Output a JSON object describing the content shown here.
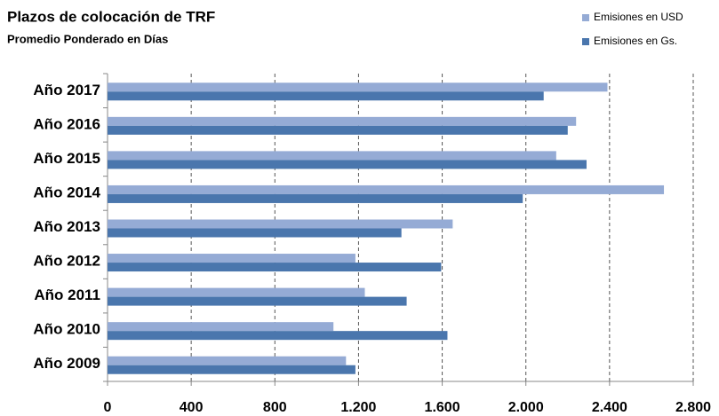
{
  "chart_data": {
    "type": "bar",
    "orientation": "horizontal",
    "title": "Plazos de colocación de TRF",
    "subtitle": "Promedio Ponderado en Días",
    "categories": [
      "Año 2017",
      "Año 2016",
      "Año 2015",
      "Año 2014",
      "Año 2013",
      "Año 2012",
      "Año 2011",
      "Año 2010",
      "Año 2009"
    ],
    "series": [
      {
        "name": "Emisiones en USD",
        "color": "#95abd5",
        "values": [
          2390,
          2240,
          2145,
          2660,
          1650,
          1185,
          1230,
          1080,
          1140
        ]
      },
      {
        "name": "Emisiones en Gs.",
        "color": "#4a76ad",
        "values": [
          2085,
          2200,
          2290,
          1985,
          1405,
          1595,
          1430,
          1625,
          1185
        ]
      }
    ],
    "xlim": [
      0,
      2800
    ],
    "xticks": [
      0,
      400,
      800,
      {
        "value": 1200,
        "label": "1.200"
      },
      {
        "value": 1600,
        "label": "1.600"
      },
      {
        "value": 2000,
        "label": "2.000"
      },
      {
        "value": 2400,
        "label": "2.400"
      },
      {
        "value": 2800,
        "label": "2.800"
      }
    ],
    "grid": true,
    "legend": "top-right"
  }
}
